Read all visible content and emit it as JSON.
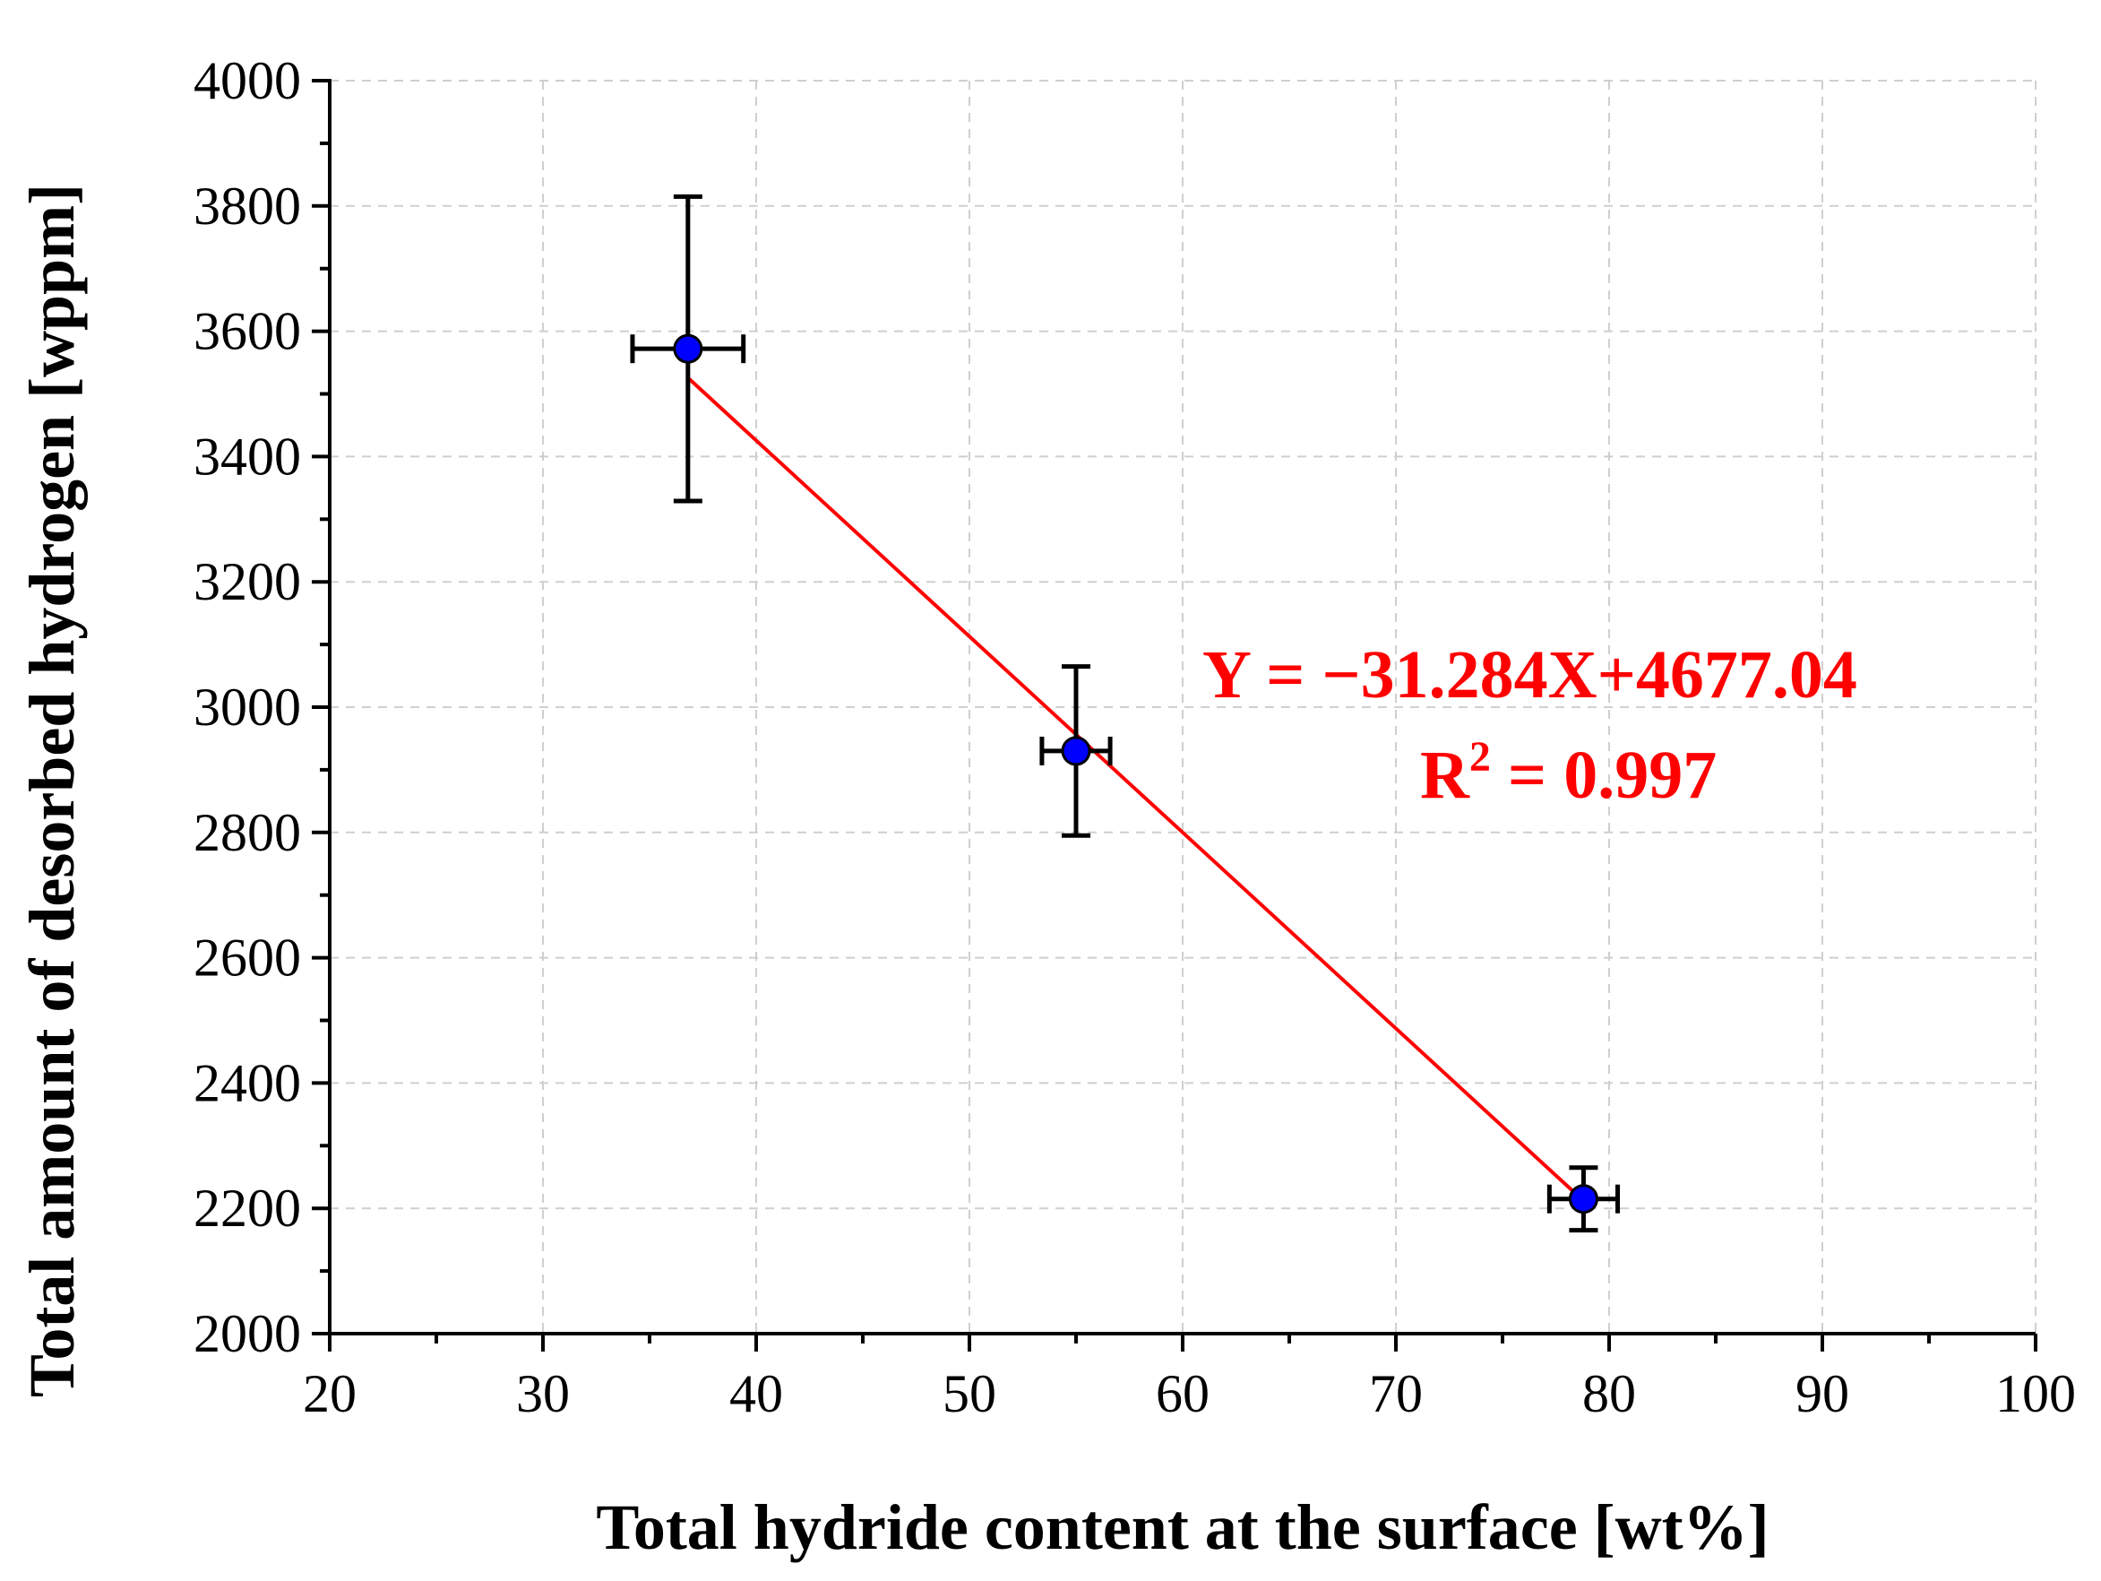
{
  "chart_data": {
    "type": "scatter",
    "title": "",
    "xlabel": "Total hydride content at the surface [wt%]",
    "ylabel": "Total amount of desorbed hydrogen [wppm]",
    "xlim": [
      20,
      100
    ],
    "ylim": [
      2000,
      4000
    ],
    "x_ticks": [
      20,
      30,
      40,
      50,
      60,
      70,
      80,
      90,
      100
    ],
    "y_ticks": [
      2000,
      2200,
      2400,
      2600,
      2800,
      3000,
      3200,
      3400,
      3600,
      3800,
      4000
    ],
    "x_tick_labels": [
      "20",
      "30",
      "40",
      "50",
      "60",
      "70",
      "80",
      "90",
      "100"
    ],
    "y_tick_labels": [
      "2000",
      "2200",
      "2400",
      "2600",
      "2800",
      "3000",
      "3200",
      "3400",
      "3600",
      "3800",
      "4000"
    ],
    "grid": true,
    "series": [
      {
        "name": "data",
        "x": [
          36.8,
          55.0,
          78.8
        ],
        "y": [
          3572,
          2930,
          2215
        ],
        "x_err": [
          2.6,
          1.6,
          1.6
        ],
        "y_err": [
          243,
          135,
          50
        ],
        "color": "#0000ff"
      }
    ],
    "fit": {
      "slope": -31.284,
      "intercept": 4677.04,
      "x_range": [
        36.8,
        78.8
      ],
      "color": "#ff0000"
    },
    "annotations": {
      "equation": "Y = −31.284X+4677.04",
      "r2_prefix": "R",
      "r2_sup": "2",
      "r2_suffix": " = 0.997",
      "color": "#ff0000"
    }
  }
}
